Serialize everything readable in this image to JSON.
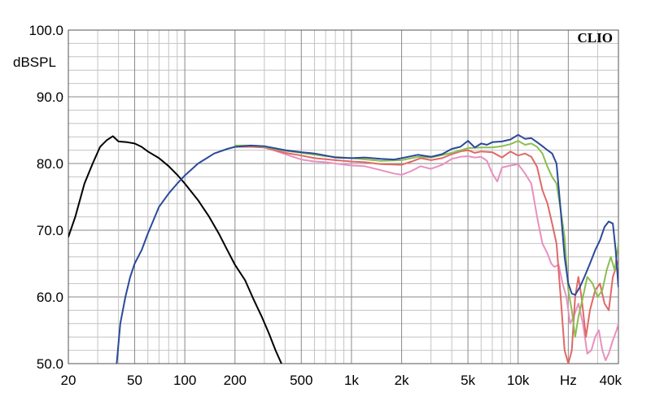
{
  "chart_data": {
    "type": "line",
    "brand": "CLIO",
    "ylabel": "dBSPL",
    "xunit": "Hz",
    "xscale": "log",
    "xlim": [
      20,
      40000
    ],
    "ylim": [
      50,
      100
    ],
    "grid": true,
    "yticks": [
      {
        "value": 100,
        "label": "100.0"
      },
      {
        "value": 90,
        "label": "90.0"
      },
      {
        "value": 80,
        "label": "80.0"
      },
      {
        "value": 70,
        "label": "70.0"
      },
      {
        "value": 60,
        "label": "60.0"
      },
      {
        "value": 50,
        "label": "50.0"
      }
    ],
    "xticks": [
      {
        "value": 20,
        "label": "20"
      },
      {
        "value": 50,
        "label": "50"
      },
      {
        "value": 100,
        "label": "100"
      },
      {
        "value": 200,
        "label": "200"
      },
      {
        "value": 500,
        "label": "500"
      },
      {
        "value": 1000,
        "label": "1k"
      },
      {
        "value": 2000,
        "label": "2k"
      },
      {
        "value": 5000,
        "label": "5k"
      },
      {
        "value": 10000,
        "label": "10k"
      },
      {
        "value": 20000,
        "label": "Hz"
      },
      {
        "value": 40000,
        "label": "40k"
      }
    ],
    "series": [
      {
        "color": "#000000",
        "points": [
          [
            20,
            69
          ],
          [
            22,
            72
          ],
          [
            25,
            77
          ],
          [
            28,
            80
          ],
          [
            31,
            82.5
          ],
          [
            34,
            83.5
          ],
          [
            37,
            84.1
          ],
          [
            40,
            83.3
          ],
          [
            45,
            83.2
          ],
          [
            50,
            83.0
          ],
          [
            55,
            82.5
          ],
          [
            60,
            81.8
          ],
          [
            70,
            80.8
          ],
          [
            80,
            79.6
          ],
          [
            90,
            78.3
          ],
          [
            100,
            77
          ],
          [
            120,
            74.5
          ],
          [
            140,
            72
          ],
          [
            160,
            69.5
          ],
          [
            180,
            67
          ],
          [
            200,
            64.8
          ],
          [
            230,
            62.5
          ],
          [
            260,
            59.5
          ],
          [
            290,
            57
          ],
          [
            320,
            54.5
          ],
          [
            350,
            52
          ],
          [
            380,
            50
          ]
        ]
      },
      {
        "color": "#e890c0",
        "points": [
          [
            200,
            82.6
          ],
          [
            250,
            82.6
          ],
          [
            300,
            82.4
          ],
          [
            350,
            81.9
          ],
          [
            400,
            81.4
          ],
          [
            500,
            80.6
          ],
          [
            600,
            80.3
          ],
          [
            700,
            80.2
          ],
          [
            800,
            80.0
          ],
          [
            1000,
            79.7
          ],
          [
            1200,
            79.6
          ],
          [
            1500,
            79.0
          ],
          [
            1800,
            78.5
          ],
          [
            2000,
            78.3
          ],
          [
            2300,
            78.9
          ],
          [
            2600,
            79.6
          ],
          [
            3000,
            79.2
          ],
          [
            3500,
            79.8
          ],
          [
            4000,
            80.7
          ],
          [
            4500,
            81.0
          ],
          [
            5000,
            81.1
          ],
          [
            5500,
            80.9
          ],
          [
            6000,
            81.0
          ],
          [
            6500,
            80.4
          ],
          [
            7000,
            78.5
          ],
          [
            7500,
            77.3
          ],
          [
            8000,
            79.4
          ],
          [
            9000,
            79.7
          ],
          [
            10000,
            79.9
          ],
          [
            11000,
            78.5
          ],
          [
            12000,
            77.0
          ],
          [
            13000,
            72.0
          ],
          [
            14000,
            68.0
          ],
          [
            15000,
            66.5
          ],
          [
            15800,
            65.0
          ],
          [
            16500,
            64.5
          ],
          [
            17500,
            64.8
          ],
          [
            18500,
            62.0
          ],
          [
            19500,
            60.0
          ],
          [
            20500,
            56.0
          ],
          [
            21500,
            57.0
          ],
          [
            23000,
            59.0
          ],
          [
            24500,
            56.0
          ],
          [
            26000,
            51.5
          ],
          [
            27500,
            52.0
          ],
          [
            29000,
            54.0
          ],
          [
            30500,
            55.0
          ],
          [
            32000,
            52.0
          ],
          [
            33500,
            50.5
          ],
          [
            35000,
            51.5
          ],
          [
            37000,
            53.5
          ],
          [
            39000,
            55.0
          ],
          [
            40000,
            56.0
          ]
        ]
      },
      {
        "color": "#e06868",
        "points": [
          [
            200,
            82.5
          ],
          [
            250,
            82.5
          ],
          [
            300,
            82.4
          ],
          [
            400,
            81.6
          ],
          [
            500,
            81.2
          ],
          [
            600,
            80.8
          ],
          [
            800,
            80.5
          ],
          [
            1000,
            80.3
          ],
          [
            1200,
            80.2
          ],
          [
            1500,
            79.9
          ],
          [
            2000,
            79.8
          ],
          [
            2300,
            80.3
          ],
          [
            2600,
            80.8
          ],
          [
            3000,
            80.5
          ],
          [
            3500,
            80.8
          ],
          [
            4000,
            81.4
          ],
          [
            4500,
            81.8
          ],
          [
            5000,
            82.0
          ],
          [
            5500,
            81.6
          ],
          [
            6000,
            81.8
          ],
          [
            7000,
            81.7
          ],
          [
            8000,
            80.9
          ],
          [
            9000,
            81.8
          ],
          [
            10000,
            81.2
          ],
          [
            11000,
            81.5
          ],
          [
            12000,
            81.0
          ],
          [
            13000,
            79.5
          ],
          [
            14000,
            76.0
          ],
          [
            15000,
            74.0
          ],
          [
            16000,
            71.0
          ],
          [
            17000,
            68.0
          ],
          [
            18000,
            60.0
          ],
          [
            19000,
            52.0
          ],
          [
            20000,
            50.0
          ],
          [
            21000,
            52.0
          ],
          [
            22000,
            60.0
          ],
          [
            23000,
            63.0
          ],
          [
            24000,
            60.0
          ],
          [
            25500,
            54.0
          ],
          [
            27000,
            58.0
          ],
          [
            29000,
            61.0
          ],
          [
            31000,
            62.0
          ],
          [
            33000,
            59.0
          ],
          [
            35000,
            58.0
          ],
          [
            37000,
            63.0
          ],
          [
            40000,
            65.5
          ]
        ]
      },
      {
        "color": "#8cbe50",
        "points": [
          [
            200,
            82.7
          ],
          [
            250,
            82.7
          ],
          [
            300,
            82.5
          ],
          [
            400,
            81.9
          ],
          [
            500,
            81.6
          ],
          [
            700,
            81.1
          ],
          [
            1000,
            80.8
          ],
          [
            1500,
            80.4
          ],
          [
            2000,
            80.5
          ],
          [
            2500,
            81.0
          ],
          [
            3000,
            80.9
          ],
          [
            4000,
            81.6
          ],
          [
            5000,
            82.3
          ],
          [
            6000,
            82.4
          ],
          [
            7000,
            82.4
          ],
          [
            8000,
            82.6
          ],
          [
            9000,
            82.9
          ],
          [
            10000,
            83.4
          ],
          [
            11000,
            82.8
          ],
          [
            12000,
            83.0
          ],
          [
            13000,
            82.5
          ],
          [
            14000,
            81.5
          ],
          [
            15000,
            79.5
          ],
          [
            16000,
            78.0
          ],
          [
            17000,
            77.0
          ],
          [
            18000,
            73.0
          ],
          [
            19000,
            69.0
          ],
          [
            20000,
            61.0
          ],
          [
            21000,
            58.0
          ],
          [
            22000,
            54.0
          ],
          [
            23000,
            57.0
          ],
          [
            24500,
            60.0
          ],
          [
            26000,
            63.0
          ],
          [
            28000,
            62.0
          ],
          [
            30000,
            60.0
          ],
          [
            32000,
            61.0
          ],
          [
            34000,
            64.0
          ],
          [
            36000,
            66.0
          ],
          [
            38000,
            64.0
          ],
          [
            40000,
            68.0
          ]
        ]
      },
      {
        "color": "#2a4a9a",
        "points": [
          [
            39,
            50
          ],
          [
            41,
            56
          ],
          [
            44,
            60
          ],
          [
            47,
            63
          ],
          [
            50,
            65
          ],
          [
            55,
            67
          ],
          [
            60,
            69.5
          ],
          [
            70,
            73.5
          ],
          [
            80,
            75.5
          ],
          [
            90,
            77
          ],
          [
            100,
            78.2
          ],
          [
            120,
            80.0
          ],
          [
            150,
            81.5
          ],
          [
            180,
            82.2
          ],
          [
            200,
            82.5
          ],
          [
            250,
            82.7
          ],
          [
            300,
            82.6
          ],
          [
            400,
            82.0
          ],
          [
            500,
            81.7
          ],
          [
            600,
            81.5
          ],
          [
            700,
            81.2
          ],
          [
            800,
            80.9
          ],
          [
            1000,
            80.8
          ],
          [
            1200,
            80.9
          ],
          [
            1500,
            80.7
          ],
          [
            1800,
            80.6
          ],
          [
            2000,
            80.8
          ],
          [
            2500,
            81.3
          ],
          [
            3000,
            81.0
          ],
          [
            3500,
            81.4
          ],
          [
            4000,
            82.2
          ],
          [
            4500,
            82.5
          ],
          [
            5000,
            83.4
          ],
          [
            5500,
            82.4
          ],
          [
            6000,
            83.0
          ],
          [
            6500,
            82.8
          ],
          [
            7000,
            83.2
          ],
          [
            8000,
            83.3
          ],
          [
            9000,
            83.6
          ],
          [
            10000,
            84.3
          ],
          [
            11000,
            83.7
          ],
          [
            12000,
            83.8
          ],
          [
            13000,
            83.2
          ],
          [
            14000,
            82.6
          ],
          [
            15000,
            82.0
          ],
          [
            16000,
            81.5
          ],
          [
            17000,
            80.0
          ],
          [
            18000,
            73.0
          ],
          [
            19000,
            66.0
          ],
          [
            20000,
            62.0
          ],
          [
            21000,
            60.5
          ],
          [
            22000,
            60.3
          ],
          [
            23500,
            61.5
          ],
          [
            25000,
            63.0
          ],
          [
            27000,
            65.0
          ],
          [
            29000,
            67.0
          ],
          [
            31000,
            68.5
          ],
          [
            33000,
            70.5
          ],
          [
            35000,
            71.3
          ],
          [
            37000,
            71.0
          ],
          [
            38500,
            67.0
          ],
          [
            40000,
            61.5
          ]
        ]
      }
    ]
  }
}
